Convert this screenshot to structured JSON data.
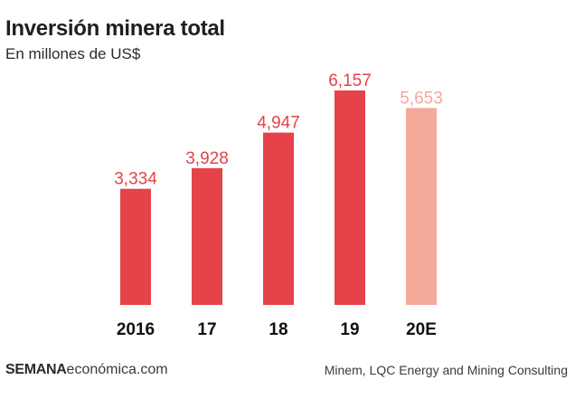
{
  "header": {
    "title": "Inversión minera total",
    "subtitle": "En millones de US$"
  },
  "footer": {
    "brand_bold": "SEMANA",
    "brand_rest": "económica.com",
    "source": "Minem, LQC Energy and Mining Consulting"
  },
  "colors": {
    "actual": "#e5424a",
    "estimate": "#f4a99b"
  },
  "chart_data": {
    "type": "bar",
    "title": "Inversión minera total",
    "subtitle": "En millones de US$",
    "categories": [
      "2016",
      "17",
      "18",
      "19",
      "20E"
    ],
    "values": [
      3334,
      3928,
      4947,
      6157,
      5653
    ],
    "value_labels": [
      "3,334",
      "3,928",
      "4,947",
      "6,157",
      "5,653"
    ],
    "estimate": [
      false,
      false,
      false,
      false,
      true
    ],
    "xlabel": "",
    "ylabel": "",
    "ylim": [
      0,
      6157
    ],
    "grid": false,
    "legend": "none"
  }
}
